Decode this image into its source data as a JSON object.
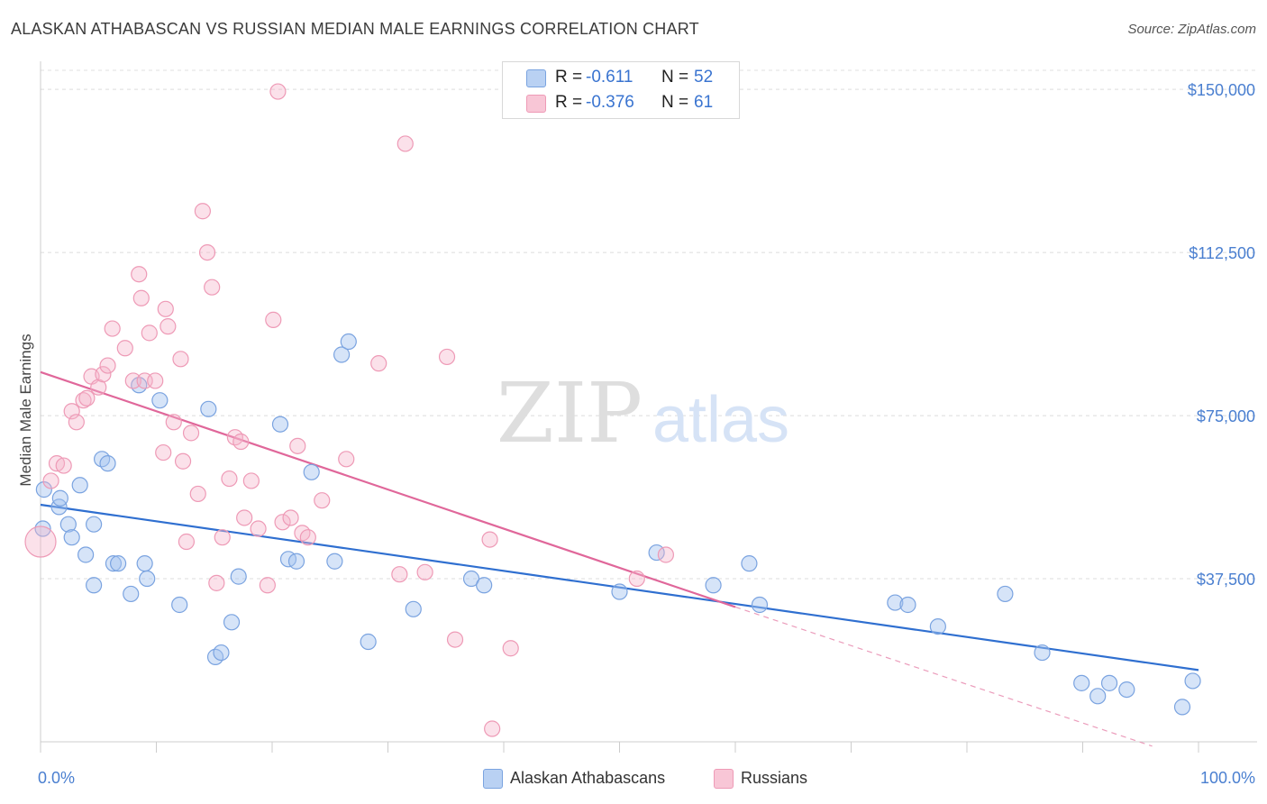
{
  "title": "ALASKAN ATHABASCAN VS RUSSIAN MEDIAN MALE EARNINGS CORRELATION CHART",
  "source": "Source: ZipAtlas.com",
  "watermark": {
    "zip": "ZIP",
    "atlas": "atlas"
  },
  "legend": {
    "r_label": "R =",
    "n_label": "N =",
    "rows": [
      {
        "r": "-0.611",
        "n": "52"
      },
      {
        "r": "-0.376",
        "n": "61"
      }
    ]
  },
  "chart_data": {
    "type": "scatter",
    "title": "ALASKAN ATHABASCAN VS RUSSIAN MEDIAN MALE EARNINGS CORRELATION CHART",
    "xlabel": "",
    "ylabel": "Median Male Earnings",
    "xlim": [
      0,
      100
    ],
    "ylim": [
      0,
      155000
    ],
    "x_tick_labels": [
      "0.0%",
      "100.0%"
    ],
    "y_ticks": [
      37500,
      75000,
      112500,
      150000
    ],
    "y_tick_labels": [
      "$37,500",
      "$75,000",
      "$112,500",
      "$150,000"
    ],
    "colors": {
      "Alaskan Athabascans": "#6f9de0",
      "Russians": "#ee8fb0"
    },
    "series": [
      {
        "name": "Alaskan Athabascans",
        "points": [
          [
            0.2,
            49000
          ],
          [
            0.3,
            58000
          ],
          [
            1.6,
            54000
          ],
          [
            1.7,
            56000
          ],
          [
            2.4,
            50000
          ],
          [
            2.7,
            47000
          ],
          [
            3.4,
            59000
          ],
          [
            3.9,
            43000
          ],
          [
            4.6,
            50000
          ],
          [
            4.6,
            36000
          ],
          [
            5.3,
            65000
          ],
          [
            5.8,
            64000
          ],
          [
            6.3,
            41000
          ],
          [
            6.7,
            41000
          ],
          [
            7.8,
            34000
          ],
          [
            8.5,
            82000
          ],
          [
            9.0,
            41000
          ],
          [
            9.2,
            37500
          ],
          [
            10.3,
            78500
          ],
          [
            12.0,
            31500
          ],
          [
            14.5,
            76500
          ],
          [
            15.1,
            19500
          ],
          [
            15.6,
            20500
          ],
          [
            16.5,
            27500
          ],
          [
            17.1,
            38000
          ],
          [
            20.7,
            73000
          ],
          [
            21.4,
            42000
          ],
          [
            22.1,
            41500
          ],
          [
            23.4,
            62000
          ],
          [
            25.4,
            41500
          ],
          [
            26.0,
            89000
          ],
          [
            26.6,
            92000
          ],
          [
            28.3,
            23000
          ],
          [
            32.2,
            30500
          ],
          [
            37.2,
            37500
          ],
          [
            38.3,
            36000
          ],
          [
            50.0,
            34500
          ],
          [
            53.2,
            43500
          ],
          [
            58.1,
            36000
          ],
          [
            61.2,
            41000
          ],
          [
            62.1,
            31500
          ],
          [
            73.8,
            32000
          ],
          [
            74.9,
            31500
          ],
          [
            77.5,
            26500
          ],
          [
            83.3,
            34000
          ],
          [
            86.5,
            20500
          ],
          [
            89.9,
            13500
          ],
          [
            91.3,
            10500
          ],
          [
            92.3,
            13500
          ],
          [
            93.8,
            12000
          ],
          [
            98.6,
            8000
          ],
          [
            99.5,
            14000
          ]
        ]
      },
      {
        "name": "Russians",
        "points": [
          [
            0.0,
            46000
          ],
          [
            0.9,
            60000
          ],
          [
            1.4,
            64000
          ],
          [
            2.0,
            63500
          ],
          [
            2.7,
            76000
          ],
          [
            3.1,
            73500
          ],
          [
            3.7,
            78500
          ],
          [
            4.0,
            79000
          ],
          [
            4.4,
            84000
          ],
          [
            5.0,
            81500
          ],
          [
            5.4,
            84500
          ],
          [
            5.8,
            86500
          ],
          [
            6.2,
            95000
          ],
          [
            7.3,
            90500
          ],
          [
            8.0,
            83000
          ],
          [
            8.5,
            107500
          ],
          [
            8.7,
            102000
          ],
          [
            9.0,
            83000
          ],
          [
            9.4,
            94000
          ],
          [
            9.9,
            83000
          ],
          [
            10.6,
            66500
          ],
          [
            10.8,
            99500
          ],
          [
            11.0,
            95500
          ],
          [
            11.5,
            73500
          ],
          [
            12.1,
            88000
          ],
          [
            12.3,
            64500
          ],
          [
            12.6,
            46000
          ],
          [
            13.0,
            71000
          ],
          [
            13.6,
            57000
          ],
          [
            14.0,
            122000
          ],
          [
            14.4,
            112500
          ],
          [
            14.8,
            104500
          ],
          [
            15.2,
            36500
          ],
          [
            15.7,
            47000
          ],
          [
            16.3,
            60500
          ],
          [
            16.8,
            70000
          ],
          [
            17.3,
            69000
          ],
          [
            17.6,
            51500
          ],
          [
            18.2,
            60000
          ],
          [
            18.8,
            49000
          ],
          [
            19.6,
            36000
          ],
          [
            20.1,
            97000
          ],
          [
            20.5,
            149500
          ],
          [
            20.9,
            50500
          ],
          [
            21.6,
            51500
          ],
          [
            22.2,
            68000
          ],
          [
            22.6,
            48000
          ],
          [
            23.1,
            47000
          ],
          [
            24.3,
            55500
          ],
          [
            26.4,
            65000
          ],
          [
            29.2,
            87000
          ],
          [
            31.0,
            38500
          ],
          [
            31.5,
            137500
          ],
          [
            33.2,
            39000
          ],
          [
            35.1,
            88500
          ],
          [
            35.8,
            23500
          ],
          [
            38.8,
            46500
          ],
          [
            39.0,
            3000
          ],
          [
            40.6,
            21500
          ],
          [
            51.5,
            37500
          ],
          [
            54.0,
            43000
          ]
        ]
      }
    ],
    "trend_lines": [
      {
        "series": "Alaskan Athabascans",
        "x": [
          0,
          100
        ],
        "y": [
          54500,
          16500
        ]
      },
      {
        "series": "Russians",
        "x": [
          0,
          60
        ],
        "y": [
          85000,
          31000
        ],
        "dashed_extension": {
          "x": [
            60,
            96
          ],
          "y": [
            31000,
            -1000
          ]
        }
      }
    ]
  },
  "bottom_legend": [
    "Alaskan Athabascans",
    "Russians"
  ]
}
